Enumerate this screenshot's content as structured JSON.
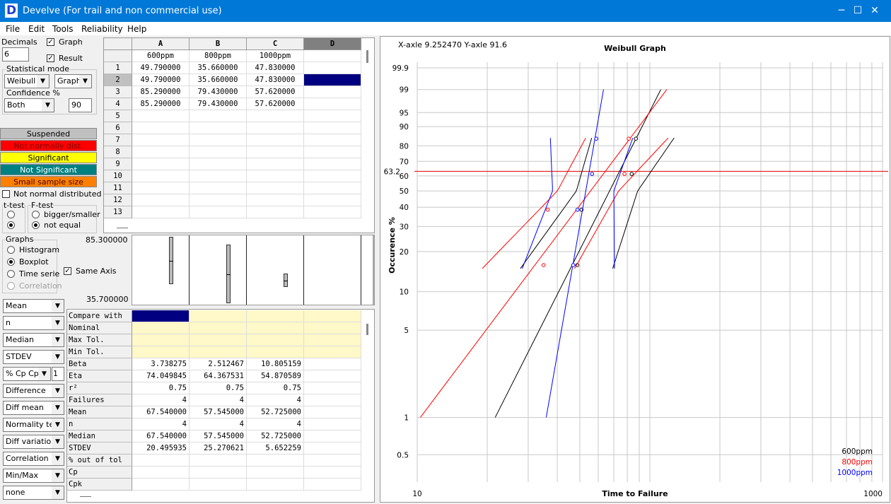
{
  "titlebar": {
    "title": "Develve (For trail and non commercial use)",
    "logo": "D",
    "minimize_icon": "─",
    "maximize_icon": "☐",
    "close_icon": "✕"
  },
  "menu": [
    "File",
    "Edit",
    "Tools",
    "Reliability",
    "Help"
  ],
  "left": {
    "decimals_label": "Decimals",
    "decimals_value": "6",
    "graph_label": "Graph",
    "result_label": "Result",
    "check_mark": "✓",
    "stat_mode_label": "Statistical mode",
    "dist_value": "Weibull",
    "output_value": "Graph",
    "confidence_label": "Confidence %",
    "conf_side_value": "Both",
    "conf_value": "90",
    "legend": {
      "suspended": "Suspended",
      "not_normal": "Not normally dist.",
      "significant": "Significant",
      "not_significant": "Not Significant",
      "small_sample": "Small sample size"
    },
    "not_normal_check": "Not normal distributed",
    "ttest_label": "t-test",
    "ftest_label": "F-test",
    "bigger_smaller": "bigger/smaller",
    "not_equal": "not equal",
    "graphs_label": "Graphs",
    "histogram": "Histogram",
    "boxplot": "Boxplot",
    "time_serie": "Time serie",
    "correlation": "Correlation",
    "same_axis": "Same Axis",
    "stat_combos": [
      "Mean",
      "n",
      "Median",
      "STDEV",
      "% Cp Cpk",
      "Difference",
      "Diff mean",
      "Normality test",
      "Diff variation",
      "Correlation",
      "Min/Max",
      "none"
    ],
    "cpk_value": "1",
    "combo_arrow": "▼"
  },
  "colors": {
    "suspended": "#c0c0c0",
    "not_normal": "#ff0000",
    "significant": "#ffff00",
    "not_significant": "#008080",
    "small_sample": "#ff8000",
    "selected": "#000080",
    "yellow_cell": "#fff8c8"
  },
  "data_grid": {
    "columns": [
      "A",
      "B",
      "C",
      "D"
    ],
    "names": [
      "600ppm",
      "800ppm",
      "1000ppm",
      ""
    ],
    "rows": [
      [
        "49.790000",
        "35.660000",
        "47.830000",
        ""
      ],
      [
        "49.790000",
        "35.660000",
        "47.830000",
        ""
      ],
      [
        "85.290000",
        "79.430000",
        "57.620000",
        ""
      ],
      [
        "85.290000",
        "79.430000",
        "57.620000",
        ""
      ],
      [
        "",
        "",
        "",
        ""
      ],
      [
        "",
        "",
        "",
        ""
      ],
      [
        "",
        "",
        "",
        ""
      ],
      [
        "",
        "",
        "",
        ""
      ],
      [
        "",
        "",
        "",
        ""
      ],
      [
        "",
        "",
        "",
        ""
      ],
      [
        "",
        "",
        "",
        ""
      ],
      [
        "",
        "",
        "",
        ""
      ],
      [
        "",
        "",
        "",
        ""
      ]
    ],
    "row_labels": [
      "1",
      "2",
      "3",
      "4",
      "5",
      "6",
      "7",
      "8",
      "9",
      "10",
      "11",
      "12",
      "13"
    ]
  },
  "boxplot": {
    "max_label": "85.300000",
    "min_label": "35.700000",
    "axis_min": 35.7,
    "axis_max": 85.3,
    "boxes": [
      {
        "min": 49.79,
        "q1": 49.79,
        "median": 67.54,
        "q3": 85.29,
        "max": 85.29
      },
      {
        "min": 35.66,
        "q1": 35.66,
        "median": 57.545,
        "q3": 79.43,
        "max": 79.43
      },
      {
        "min": 47.83,
        "q1": 47.83,
        "median": 52.725,
        "q3": 57.62,
        "max": 57.62
      }
    ]
  },
  "stats_grid": {
    "labels": [
      "Compare with",
      "Nominal",
      "Max Tol.",
      "Min Tol.",
      "Beta",
      "Eta",
      "r²",
      "Failures",
      "Mean",
      "n",
      "Median",
      "STDEV",
      "% out of tol",
      "Cp",
      "Cpk"
    ],
    "values": [
      [
        "",
        "",
        "",
        ""
      ],
      [
        "",
        "",
        "",
        ""
      ],
      [
        "",
        "",
        "",
        ""
      ],
      [
        "",
        "",
        "",
        ""
      ],
      [
        "3.738275",
        "2.512467",
        "10.805159",
        ""
      ],
      [
        "74.049845",
        "64.367531",
        "54.870589",
        ""
      ],
      [
        "0.75",
        "0.75",
        "0.75",
        ""
      ],
      [
        "4",
        "4",
        "4",
        ""
      ],
      [
        "67.540000",
        "57.545000",
        "52.725000",
        ""
      ],
      [
        "4",
        "4",
        "4",
        ""
      ],
      [
        "67.540000",
        "57.545000",
        "52.725000",
        ""
      ],
      [
        "20.495935",
        "25.270621",
        "5.652259",
        ""
      ],
      [
        "",
        "",
        "",
        ""
      ],
      [
        "",
        "",
        "",
        ""
      ],
      [
        "",
        "",
        "",
        ""
      ]
    ]
  },
  "chart": {
    "coord_text": "X-axle 9.252470 Y-axle 91.6",
    "title": "Weibull Graph",
    "ylabel": "Occurence %",
    "xlabel": "Time to Failure",
    "x_tick_labels": [
      "10",
      "1000"
    ],
    "y_ticks": [
      0.5,
      1,
      5,
      10,
      20,
      30,
      40,
      50,
      60,
      70,
      80,
      90,
      95,
      99,
      99.9
    ],
    "y_tick_labels": [
      "0.5",
      "1",
      "5",
      "10",
      "20",
      "30",
      "40",
      "50",
      "60",
      "70",
      "80",
      "90",
      "95",
      "99",
      "99.9"
    ],
    "ref_line_label": "63.2",
    "legend": [
      "600ppm",
      "800ppm",
      "1000ppm"
    ]
  },
  "chart_data": {
    "type": "scatter",
    "title": "Weibull Graph",
    "xlabel": "Time to Failure",
    "ylabel": "Occurence %",
    "xlim": [
      10,
      1000
    ],
    "ylim": [
      0.3,
      99.9
    ],
    "xscale": "log",
    "yscale": "weibull",
    "ref_line": 63.2,
    "series": [
      {
        "name": "600ppm",
        "color": "#000000",
        "beta": 3.738275,
        "eta": 74.049845,
        "x": [
          49.79,
          49.79,
          85.29,
          85.29
        ],
        "y": [
          15.9,
          38.6,
          61.4,
          84.1
        ]
      },
      {
        "name": "800ppm",
        "color": "#ff0000",
        "beta": 2.512467,
        "eta": 64.367531,
        "x": [
          35.66,
          35.66,
          79.43,
          79.43
        ],
        "y": [
          15.9,
          38.6,
          61.4,
          84.1
        ]
      },
      {
        "name": "1000ppm",
        "color": "#0000ff",
        "beta": 10.805159,
        "eta": 54.870589,
        "x": [
          47.83,
          47.83,
          57.62,
          57.62
        ],
        "y": [
          15.9,
          38.6,
          61.4,
          84.1
        ]
      }
    ]
  }
}
